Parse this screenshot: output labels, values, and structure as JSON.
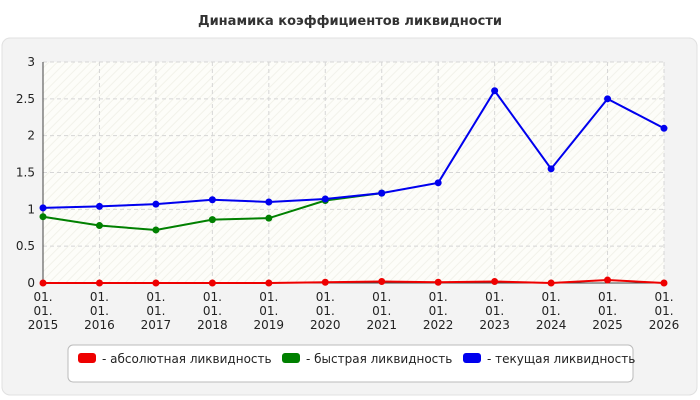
{
  "chart_data": {
    "type": "line",
    "title": "Динамика коэффициентов ликвидности",
    "categories": [
      "01.\n01.\n2015",
      "01.\n01.\n2016",
      "01.\n01.\n2017",
      "01.\n01.\n2018",
      "01.\n01.\n2019",
      "01.\n01.\n2020",
      "01.\n01.\n2021",
      "01.\n01.\n2022",
      "01.\n01.\n2023",
      "01.\n01.\n2024",
      "01.\n01.\n2025",
      "01.\n01.\n2026"
    ],
    "series": [
      {
        "name": "- абсолютная ликвидность",
        "color": "#ee0000",
        "values": [
          0,
          0,
          0,
          0,
          0,
          0.01,
          0.02,
          0.01,
          0.02,
          0,
          0.04,
          0
        ]
      },
      {
        "name": "- быстрая ликвидность",
        "color": "#008000",
        "values": [
          0.9,
          0.78,
          0.72,
          0.86,
          0.88,
          1.12,
          1.22,
          null,
          null,
          null,
          null,
          null
        ]
      },
      {
        "name": "- текущая ликвидность",
        "color": "#0000ee",
        "values": [
          1.02,
          1.04,
          1.07,
          1.13,
          1.1,
          1.14,
          1.22,
          1.36,
          2.61,
          1.55,
          2.5,
          2.1
        ]
      }
    ],
    "ylim": [
      0,
      3
    ],
    "yticks": [
      0,
      0.5,
      1,
      1.5,
      2,
      2.5,
      3
    ],
    "grid": true,
    "legend": "bottom"
  }
}
